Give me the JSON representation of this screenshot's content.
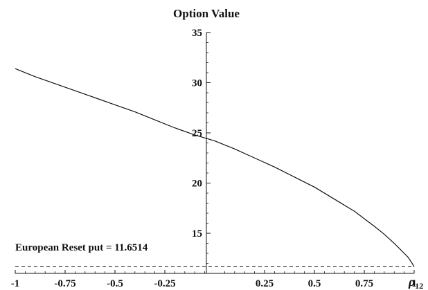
{
  "chart_data": {
    "type": "line",
    "title": "Option Value",
    "xlabel": "ρ",
    "xlabel_sub": "12",
    "ylabel": "",
    "xlim": [
      -1,
      1
    ],
    "ylim": [
      11,
      35
    ],
    "grid": false,
    "x_ticks": [
      -1,
      -0.75,
      -0.5,
      -0.25,
      0.25,
      0.5,
      0.75,
      1
    ],
    "x_tick_labels": [
      "-1",
      "-0.75",
      "-0.5",
      "-0.25",
      "0.25",
      "0.5",
      "0.75",
      "1"
    ],
    "y_ticks": [
      15,
      20,
      25,
      30,
      35
    ],
    "y_tick_labels": [
      "15",
      "20",
      "25",
      "30",
      "35"
    ],
    "series": [
      {
        "x": [
          -1,
          -0.9,
          -0.8,
          -0.7,
          -0.6,
          -0.5,
          -0.4,
          -0.3,
          -0.2,
          -0.1,
          0,
          0.1,
          0.2,
          0.3,
          0.4,
          0.5,
          0.6,
          0.7,
          0.8,
          0.85,
          0.9,
          0.93,
          0.95,
          0.97,
          0.98,
          0.99,
          1
        ],
        "y": [
          31.4,
          30.6,
          29.9,
          29.2,
          28.5,
          27.8,
          27.1,
          26.3,
          25.5,
          24.8,
          24.2,
          23.4,
          22.5,
          21.6,
          20.6,
          19.6,
          18.4,
          17.2,
          15.7,
          14.9,
          14.0,
          13.4,
          13.0,
          12.6,
          12.3,
          12.0,
          11.65
        ]
      }
    ],
    "reference_line": {
      "y": 11.6514,
      "style": "dashed",
      "label": "European Reset put = 11.6514"
    }
  }
}
